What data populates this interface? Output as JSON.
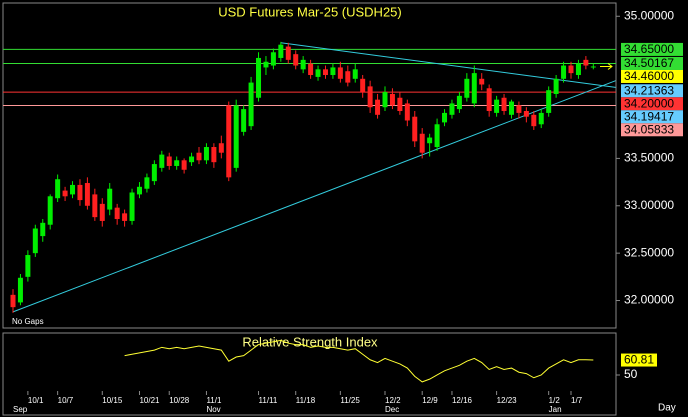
{
  "chart_data": {
    "type": "candlestick",
    "title": "USD Futures Mar-25 (USDH25)",
    "gap_note": "No Gaps",
    "period": "Day",
    "up_color": "#00ee00",
    "down_color": "#ff2020",
    "categories": [
      null,
      null,
      "10/1",
      null,
      null,
      null,
      "10/7",
      null,
      null,
      null,
      null,
      null,
      "10/15",
      null,
      null,
      null,
      null,
      "10/21",
      null,
      null,
      null,
      "10/28",
      null,
      null,
      null,
      null,
      "11/1",
      null,
      null,
      null,
      null,
      null,
      null,
      "11/11",
      null,
      null,
      null,
      null,
      "11/18",
      null,
      null,
      null,
      null,
      null,
      "11/25",
      null,
      null,
      null,
      null,
      null,
      "12/2",
      null,
      null,
      null,
      null,
      "12/9",
      null,
      null,
      null,
      "12/16",
      null,
      null,
      null,
      null,
      null,
      "12/23",
      null,
      null,
      null,
      null,
      null,
      null,
      "1/2",
      null,
      null,
      "1/7",
      null,
      null,
      null
    ],
    "months": [
      "Sep",
      null,
      null,
      null,
      null,
      null,
      null,
      null,
      null,
      null,
      null,
      null,
      null,
      null,
      null,
      null,
      null,
      null,
      null,
      null,
      null,
      null,
      null,
      null,
      null,
      null,
      "Nov",
      null,
      null,
      null,
      null,
      null,
      null,
      null,
      null,
      null,
      null,
      null,
      null,
      null,
      null,
      null,
      null,
      null,
      null,
      null,
      null,
      null,
      null,
      null,
      "Dec",
      null,
      null,
      null,
      null,
      null,
      null,
      null,
      null,
      null,
      null,
      null,
      null,
      null,
      null,
      null,
      null,
      null,
      null,
      null,
      null,
      null,
      "Jan",
      null,
      null,
      null,
      null,
      null,
      null
    ],
    "open": [
      32.06,
      31.98,
      32.25,
      32.5,
      32.68,
      32.8,
      33.08,
      33.16,
      33.12,
      33.22,
      33.24,
      33.12,
      33.02,
      32.96,
      32.98,
      32.92,
      32.84,
      33.12,
      33.18,
      33.26,
      33.4,
      33.52,
      33.42,
      33.48,
      33.46,
      33.56,
      33.48,
      33.62,
      33.66,
      34.06,
      33.4,
      33.78,
      33.84,
      34.14,
      34.46,
      34.48,
      34.56,
      34.68,
      34.6,
      34.44,
      34.5,
      34.36,
      34.44,
      34.38,
      34.46,
      34.42,
      34.34,
      34.34,
      34.26,
      34.12,
      34.04,
      34.18,
      34.14,
      34.08,
      33.94,
      33.76,
      33.66,
      33.62,
      33.88,
      33.96,
      34.02,
      34.14,
      34.08,
      34.34,
      34.24,
      33.98,
      34.14,
      33.96,
      34.06,
      34.0,
      33.96,
      33.86,
      33.98,
      34.18,
      34.34,
      34.48,
      34.38,
      34.54,
      34.46
    ],
    "high": [
      32.12,
      32.28,
      32.53,
      32.8,
      32.86,
      33.12,
      33.33,
      33.2,
      33.26,
      33.28,
      33.3,
      33.18,
      33.08,
      33.24,
      33.02,
      32.96,
      33.18,
      33.25,
      33.34,
      33.48,
      33.58,
      33.56,
      33.52,
      33.5,
      33.56,
      33.62,
      33.66,
      33.66,
      33.74,
      34.1,
      34.12,
      34.06,
      34.36,
      34.62,
      34.58,
      34.66,
      34.73,
      34.72,
      34.64,
      34.58,
      34.54,
      34.48,
      34.48,
      34.5,
      34.52,
      34.48,
      34.5,
      34.38,
      34.32,
      34.18,
      34.26,
      34.24,
      34.2,
      34.12,
      34.0,
      33.82,
      33.76,
      33.92,
      34.02,
      34.12,
      34.2,
      34.4,
      34.48,
      34.4,
      34.28,
      34.16,
      34.18,
      34.12,
      34.1,
      34.04,
      34.0,
      34.02,
      34.26,
      34.38,
      34.52,
      34.52,
      34.54,
      34.58,
      34.5
    ],
    "low": [
      31.87,
      31.95,
      32.2,
      32.46,
      32.62,
      32.75,
      33.04,
      33.05,
      33.08,
      33.0,
      32.96,
      32.84,
      32.78,
      32.9,
      32.8,
      32.78,
      32.8,
      33.08,
      33.14,
      33.22,
      33.36,
      33.38,
      33.38,
      33.34,
      33.42,
      33.44,
      33.44,
      33.4,
      33.5,
      33.26,
      33.36,
      33.74,
      33.8,
      34.1,
      34.38,
      34.44,
      34.52,
      34.5,
      34.44,
      34.4,
      34.34,
      34.32,
      34.34,
      34.34,
      34.3,
      34.26,
      34.3,
      34.14,
      33.98,
      33.92,
      34.0,
      34.02,
      33.96,
      33.84,
      33.62,
      33.5,
      33.52,
      33.58,
      33.84,
      33.92,
      33.98,
      34.1,
      34.04,
      34.22,
      33.94,
      33.94,
      33.96,
      33.92,
      33.92,
      33.88,
      33.8,
      33.82,
      33.94,
      34.14,
      34.3,
      34.34,
      34.34,
      34.44,
      34.44
    ],
    "close": [
      31.93,
      32.24,
      32.48,
      32.76,
      32.82,
      33.1,
      33.28,
      33.1,
      33.22,
      33.06,
      33.0,
      32.88,
      32.84,
      33.18,
      32.86,
      32.84,
      33.14,
      33.2,
      33.3,
      33.44,
      33.54,
      33.42,
      33.48,
      33.38,
      33.52,
      33.48,
      33.62,
      33.46,
      33.56,
      33.3,
      34.06,
      34.02,
      34.3,
      34.56,
      34.52,
      34.62,
      34.7,
      34.54,
      34.48,
      34.54,
      34.38,
      34.44,
      34.38,
      34.46,
      34.34,
      34.3,
      34.44,
      34.2,
      34.04,
      33.96,
      34.2,
      34.06,
      34.0,
      33.9,
      33.68,
      33.56,
      33.72,
      33.86,
      33.98,
      34.08,
      34.16,
      34.34,
      34.4,
      34.28,
      34.0,
      34.12,
      34.0,
      34.1,
      33.98,
      33.94,
      33.84,
      33.98,
      34.22,
      34.34,
      34.48,
      34.4,
      34.5,
      34.48,
      34.47
    ],
    "ylim": [
      31.71,
      35.14
    ],
    "yticks": [
      {
        "value": 35,
        "label": "35.00000"
      },
      {
        "value": 33.5,
        "label": "33.50000"
      },
      {
        "value": 33,
        "label": "33.00000"
      },
      {
        "value": 32.5,
        "label": "32.50000"
      },
      {
        "value": 32,
        "label": "32.00000"
      }
    ],
    "levels": [
      {
        "value": 34.65,
        "label": "34.65000",
        "color": "#33dd33",
        "line": true
      },
      {
        "value": 34.50167,
        "label": "34.50167",
        "color": "#33dd33",
        "line": true
      },
      {
        "value": 34.46,
        "label": "34.46000",
        "color": "#ffff00",
        "line": false
      },
      {
        "value": 34.21363,
        "label": "34.21363",
        "color": "#66ccff",
        "line": false
      },
      {
        "value": 34.2,
        "label": "34.20000",
        "color": "#ff3333",
        "line": true
      },
      {
        "value": 34.19417,
        "label": "34.19417",
        "color": "#66ccff",
        "line": false
      },
      {
        "value": 34.05833,
        "label": "34.05833",
        "color": "#ff9999",
        "line": true
      }
    ],
    "trendline_color": "#33ccdd",
    "trendlines": [
      {
        "x": [
          0,
          81
        ],
        "y": [
          31.88,
          34.32
        ]
      },
      {
        "x": [
          36,
          81
        ],
        "y": [
          34.72,
          34.25
        ]
      }
    ],
    "indicator": {
      "title": "Relative Strength Index",
      "color": "#ffff33",
      "ylim": [
        37.7,
        75.3
      ],
      "yticks": [
        50
      ],
      "values": [
        null,
        null,
        null,
        null,
        null,
        null,
        null,
        null,
        null,
        null,
        null,
        null,
        null,
        null,
        null,
        64,
        65,
        66,
        67,
        68,
        70,
        69,
        70,
        69,
        70,
        71,
        70,
        69,
        68,
        60,
        63,
        64,
        68,
        72,
        73,
        74,
        75,
        73,
        72,
        72,
        70,
        71,
        70,
        70,
        69,
        68,
        69,
        65,
        61,
        59,
        62,
        60,
        58,
        55,
        49,
        45,
        47,
        50,
        53,
        55,
        57,
        60,
        62,
        59,
        54,
        56,
        54,
        55,
        52,
        51,
        48,
        50,
        55,
        58,
        61,
        59,
        61,
        61,
        60.81
      ],
      "last_value": 60.81
    }
  }
}
